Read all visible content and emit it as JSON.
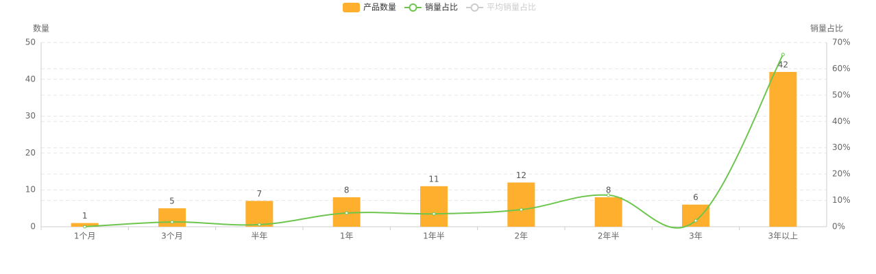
{
  "chart_data": {
    "type": "bar-line",
    "categories": [
      "1个月",
      "3个月",
      "半年",
      "1年",
      "1年半",
      "2年",
      "2年半",
      "3年",
      "3年以上"
    ],
    "series": [
      {
        "name": "产品数量",
        "type": "bar",
        "color": "#fdaf2d",
        "values": [
          1,
          5,
          7,
          8,
          11,
          12,
          8,
          6,
          42
        ]
      },
      {
        "name": "销量占比",
        "type": "line",
        "axis": "y2",
        "color": "#6cc54d",
        "values": [
          0,
          1.8,
          0.8,
          5.2,
          4.9,
          6.5,
          12.0,
          2.3,
          65.4
        ]
      },
      {
        "name": "平均销量占比",
        "type": "line",
        "axis": "y2",
        "color": "#cccccc",
        "hidden": true
      }
    ],
    "ylabel": "数量",
    "y2label": "销量占比",
    "ylim": [
      0,
      50
    ],
    "yticks": [
      0,
      10,
      20,
      30,
      40,
      50
    ],
    "y2lim": [
      0,
      70
    ],
    "y2ticks": [
      {
        "value": 0,
        "label": "0%"
      },
      {
        "value": 10,
        "label": "10%"
      },
      {
        "value": 20,
        "label": "20%"
      },
      {
        "value": 30,
        "label": "30%"
      },
      {
        "value": 40,
        "label": "40%"
      },
      {
        "value": 50,
        "label": "50%"
      },
      {
        "value": 60,
        "label": "60%"
      },
      {
        "value": 70,
        "label": "70%"
      }
    ],
    "grid": true
  }
}
